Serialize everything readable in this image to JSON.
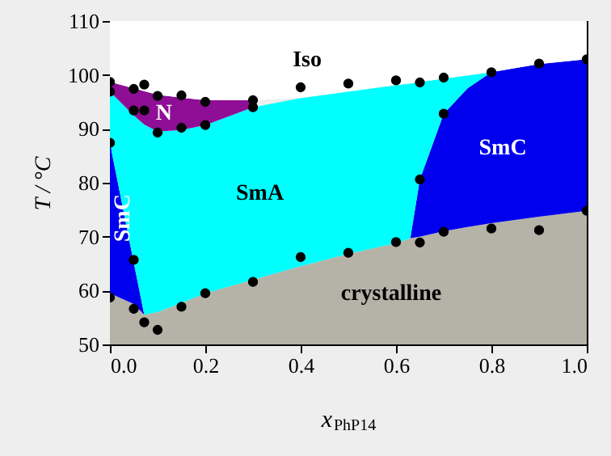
{
  "chart_data": {
    "type": "area",
    "xlabel": "x$_{PhP14}$",
    "ylabel": "T / °C",
    "x": [
      0,
      0.05,
      0.072,
      0.1,
      0.15,
      0.2,
      0.3,
      0.4,
      0.5,
      0.6,
      0.63,
      0.65,
      0.7,
      0.75,
      0.8,
      0.9,
      1.0
    ],
    "series": [
      {
        "name": "crystalline",
        "color": "#b5b3a8",
        "values": [
          59.5,
          57.5,
          55.5,
          56.0,
          57.7,
          59.5,
          62.0,
          64.5,
          66.8,
          68.8,
          69.7,
          70.0,
          71.0,
          71.8,
          72.5,
          73.7,
          74.8
        ]
      },
      {
        "name": "SmC",
        "color": "#0000ee",
        "values": [
          87.4,
          65.2,
          55.5,
          null,
          null,
          null,
          null,
          null,
          null,
          null,
          69.7,
          80.6,
          92.8,
          97.5,
          100.5,
          102.0,
          102.9
        ]
      },
      {
        "name": "SmA",
        "color": "#00ffff",
        "values": [
          96.9,
          92.5,
          90.8,
          89.5,
          89.8,
          90.7,
          94.0,
          95.7,
          96.9,
          98.1,
          98.4,
          98.7,
          99.3,
          99.9,
          100.5,
          null,
          null
        ]
      },
      {
        "name": "N",
        "color": "#8e0e96",
        "values": [
          98.7,
          97.5,
          97.0,
          96.3,
          95.8,
          95.3,
          95.3,
          null,
          null,
          null,
          null,
          null,
          null,
          null,
          null,
          null,
          null
        ]
      },
      {
        "name": "Iso",
        "color": "#ffffff",
        "values": [
          110,
          110,
          110,
          110,
          110,
          110,
          110,
          110,
          110,
          110,
          110,
          110,
          110,
          110,
          110,
          110,
          110
        ]
      },
      {
        "type": "scatter",
        "marker": "circle",
        "color": "#000000",
        "x": [
          0,
          0,
          0.05,
          0.072,
          0.1,
          0.15,
          0.2,
          0.3,
          0.3,
          0.4,
          0.5,
          0.6,
          0.65,
          0.7,
          0.8,
          0.9,
          1.0,
          0.05,
          0.072,
          0.1,
          0.15,
          0.2,
          0,
          0.7,
          0.65,
          0.05,
          0,
          0.05,
          0.072,
          0.1,
          0.15,
          0.2,
          0.3,
          0.4,
          0.5,
          0.6,
          0.65,
          0.7,
          0.8,
          0.9,
          1.0
        ],
        "values": [
          98.7,
          96.9,
          97.4,
          98.2,
          96.1,
          96.2,
          95.0,
          95.3,
          94.0,
          97.7,
          98.4,
          99.0,
          98.6,
          99.5,
          100.5,
          102.1,
          102.9,
          93.4,
          93.4,
          89.3,
          90.2,
          90.7,
          87.4,
          92.8,
          80.6,
          65.7,
          58.7,
          56.6,
          54.1,
          52.7,
          57.0,
          59.5,
          61.6,
          66.2,
          67.0,
          69.0,
          68.9,
          70.9,
          71.5,
          71.2,
          74.8
        ]
      }
    ],
    "xlim": [
      0,
      1.0
    ],
    "ylim": [
      50,
      110
    ],
    "xticks": [
      {
        "value": 0,
        "label": "0.0"
      },
      {
        "value": 0.2,
        "label": "0.2"
      },
      {
        "value": 0.4,
        "label": "0.4"
      },
      {
        "value": 0.6,
        "label": "0.6"
      },
      {
        "value": 0.8,
        "label": "0.8"
      },
      {
        "value": 1.0,
        "label": "1.0"
      }
    ],
    "yticks": [
      50,
      60,
      70,
      80,
      90,
      100,
      110
    ],
    "grid": false
  }
}
